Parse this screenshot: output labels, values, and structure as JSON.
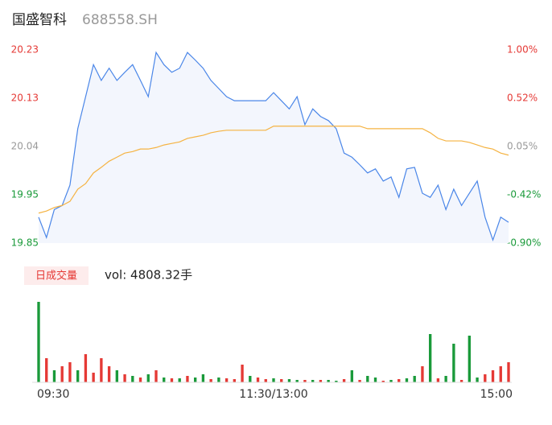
{
  "chart_data": {
    "type": "line",
    "title": "国盛智科",
    "subtitle": "688558.SH",
    "x": [
      0,
      4,
      8,
      12,
      16,
      20,
      24,
      28,
      32,
      36,
      40,
      44,
      48,
      52,
      56,
      60,
      64,
      68,
      72,
      76,
      80,
      84,
      88,
      92,
      96,
      100,
      104,
      108,
      112,
      116,
      120,
      124,
      128,
      132,
      136,
      140,
      144,
      148,
      152,
      156,
      160,
      164,
      168,
      172,
      176,
      180,
      184,
      188,
      192,
      196,
      200,
      204,
      208,
      212,
      216,
      220,
      224,
      228,
      232,
      236,
      240
    ],
    "xlim": [
      0,
      240
    ],
    "xticks": [
      {
        "value": 0,
        "label": "09:30"
      },
      {
        "value": 120,
        "label": "11:30/13:00"
      },
      {
        "value": 240,
        "label": "15:00"
      }
    ],
    "series": [
      {
        "color": "#4a86e8",
        "values": [
          19.901,
          19.861,
          19.916,
          19.924,
          19.964,
          20.075,
          20.138,
          20.201,
          20.17,
          20.194,
          20.17,
          20.186,
          20.201,
          20.17,
          20.138,
          20.225,
          20.201,
          20.186,
          20.194,
          20.225,
          20.21,
          20.194,
          20.17,
          20.154,
          20.138,
          20.13,
          20.13,
          20.13,
          20.13,
          20.13,
          20.146,
          20.13,
          20.114,
          20.138,
          20.083,
          20.114,
          20.099,
          20.091,
          20.075,
          20.027,
          20.019,
          20.004,
          19.988,
          19.996,
          19.972,
          19.98,
          19.94,
          19.996,
          19.999,
          19.948,
          19.94,
          19.964,
          19.916,
          19.956,
          19.924,
          19.948,
          19.972,
          19.901,
          19.856,
          19.901,
          19.891
        ]
      },
      {
        "color": "#f5b342",
        "values": [
          19.909,
          19.913,
          19.92,
          19.924,
          19.932,
          19.956,
          19.967,
          19.988,
          19.999,
          20.011,
          20.019,
          20.027,
          20.03,
          20.035,
          20.035,
          20.038,
          20.043,
          20.046,
          20.049,
          20.056,
          20.059,
          20.062,
          20.067,
          20.07,
          20.072,
          20.072,
          20.072,
          20.072,
          20.072,
          20.072,
          20.08,
          20.08,
          20.08,
          20.08,
          20.08,
          20.08,
          20.08,
          20.08,
          20.08,
          20.08,
          20.08,
          20.08,
          20.075,
          20.075,
          20.075,
          20.075,
          20.075,
          20.075,
          20.075,
          20.075,
          20.067,
          20.056,
          20.051,
          20.051,
          20.051,
          20.048,
          20.043,
          20.038,
          20.035,
          20.027,
          20.023
        ]
      }
    ],
    "ylim": [
      19.85,
      20.23
    ],
    "yticks": [
      {
        "value": 19.85,
        "label": "19.85"
      },
      {
        "value": 19.945,
        "label": "19.95"
      },
      {
        "value": 20.04,
        "label": "20.04"
      },
      {
        "value": 20.135,
        "label": "20.13"
      },
      {
        "value": 20.23,
        "label": "20.23"
      }
    ],
    "ytick_colors": [
      "#1a9a3a",
      "#1a9a3a",
      "#999999",
      "#e53935",
      "#e53935"
    ],
    "y2lim": [
      -0.9,
      1.0
    ],
    "y2ticks": [
      {
        "value": -0.9,
        "label": "-0.90%"
      },
      {
        "value": -0.425,
        "label": "-0.42%"
      },
      {
        "value": 0.05,
        "label": "0.05%"
      },
      {
        "value": 0.525,
        "label": "0.52%"
      },
      {
        "value": 1.0,
        "label": "1.00%"
      }
    ],
    "volume": {
      "label": "日成交量",
      "readout": "vol: 4808.32手",
      "ylim": [
        0,
        100
      ],
      "values": [
        100,
        30,
        15,
        20,
        25,
        15,
        35,
        12,
        30,
        20,
        15,
        10,
        8,
        6,
        10,
        15,
        6,
        5,
        5,
        8,
        6,
        10,
        4,
        6,
        5,
        4,
        22,
        8,
        6,
        4,
        5,
        4,
        4,
        3,
        3,
        3,
        3,
        3,
        2,
        4,
        15,
        3,
        8,
        6,
        2,
        3,
        4,
        5,
        8,
        20,
        60,
        5,
        8,
        48,
        3,
        58,
        6,
        10,
        15,
        20,
        25
      ],
      "colors": [
        "#1a9a3a",
        "#e53935",
        "#1a9a3a",
        "#e53935",
        "#e53935",
        "#1a9a3a",
        "#e53935",
        "#e53935",
        "#e53935",
        "#e53935",
        "#1a9a3a",
        "#e53935",
        "#1a9a3a",
        "#e53935",
        "#1a9a3a",
        "#e53935",
        "#1a9a3a",
        "#e53935",
        "#1a9a3a",
        "#e53935",
        "#1a9a3a",
        "#1a9a3a",
        "#e53935",
        "#1a9a3a",
        "#e53935",
        "#e53935",
        "#e53935",
        "#1a9a3a",
        "#e53935",
        "#e53935",
        "#1a9a3a",
        "#e53935",
        "#1a9a3a",
        "#1a9a3a",
        "#e53935",
        "#1a9a3a",
        "#e53935",
        "#1a9a3a",
        "#1a9a3a",
        "#e53935",
        "#1a9a3a",
        "#e53935",
        "#1a9a3a",
        "#1a9a3a",
        "#e53935",
        "#1a9a3a",
        "#e53935",
        "#1a9a3a",
        "#1a9a3a",
        "#e53935",
        "#1a9a3a",
        "#e53935",
        "#1a9a3a",
        "#1a9a3a",
        "#e53935",
        "#1a9a3a",
        "#1a9a3a",
        "#e53935",
        "#e53935",
        "#e53935",
        "#e53935"
      ]
    }
  }
}
